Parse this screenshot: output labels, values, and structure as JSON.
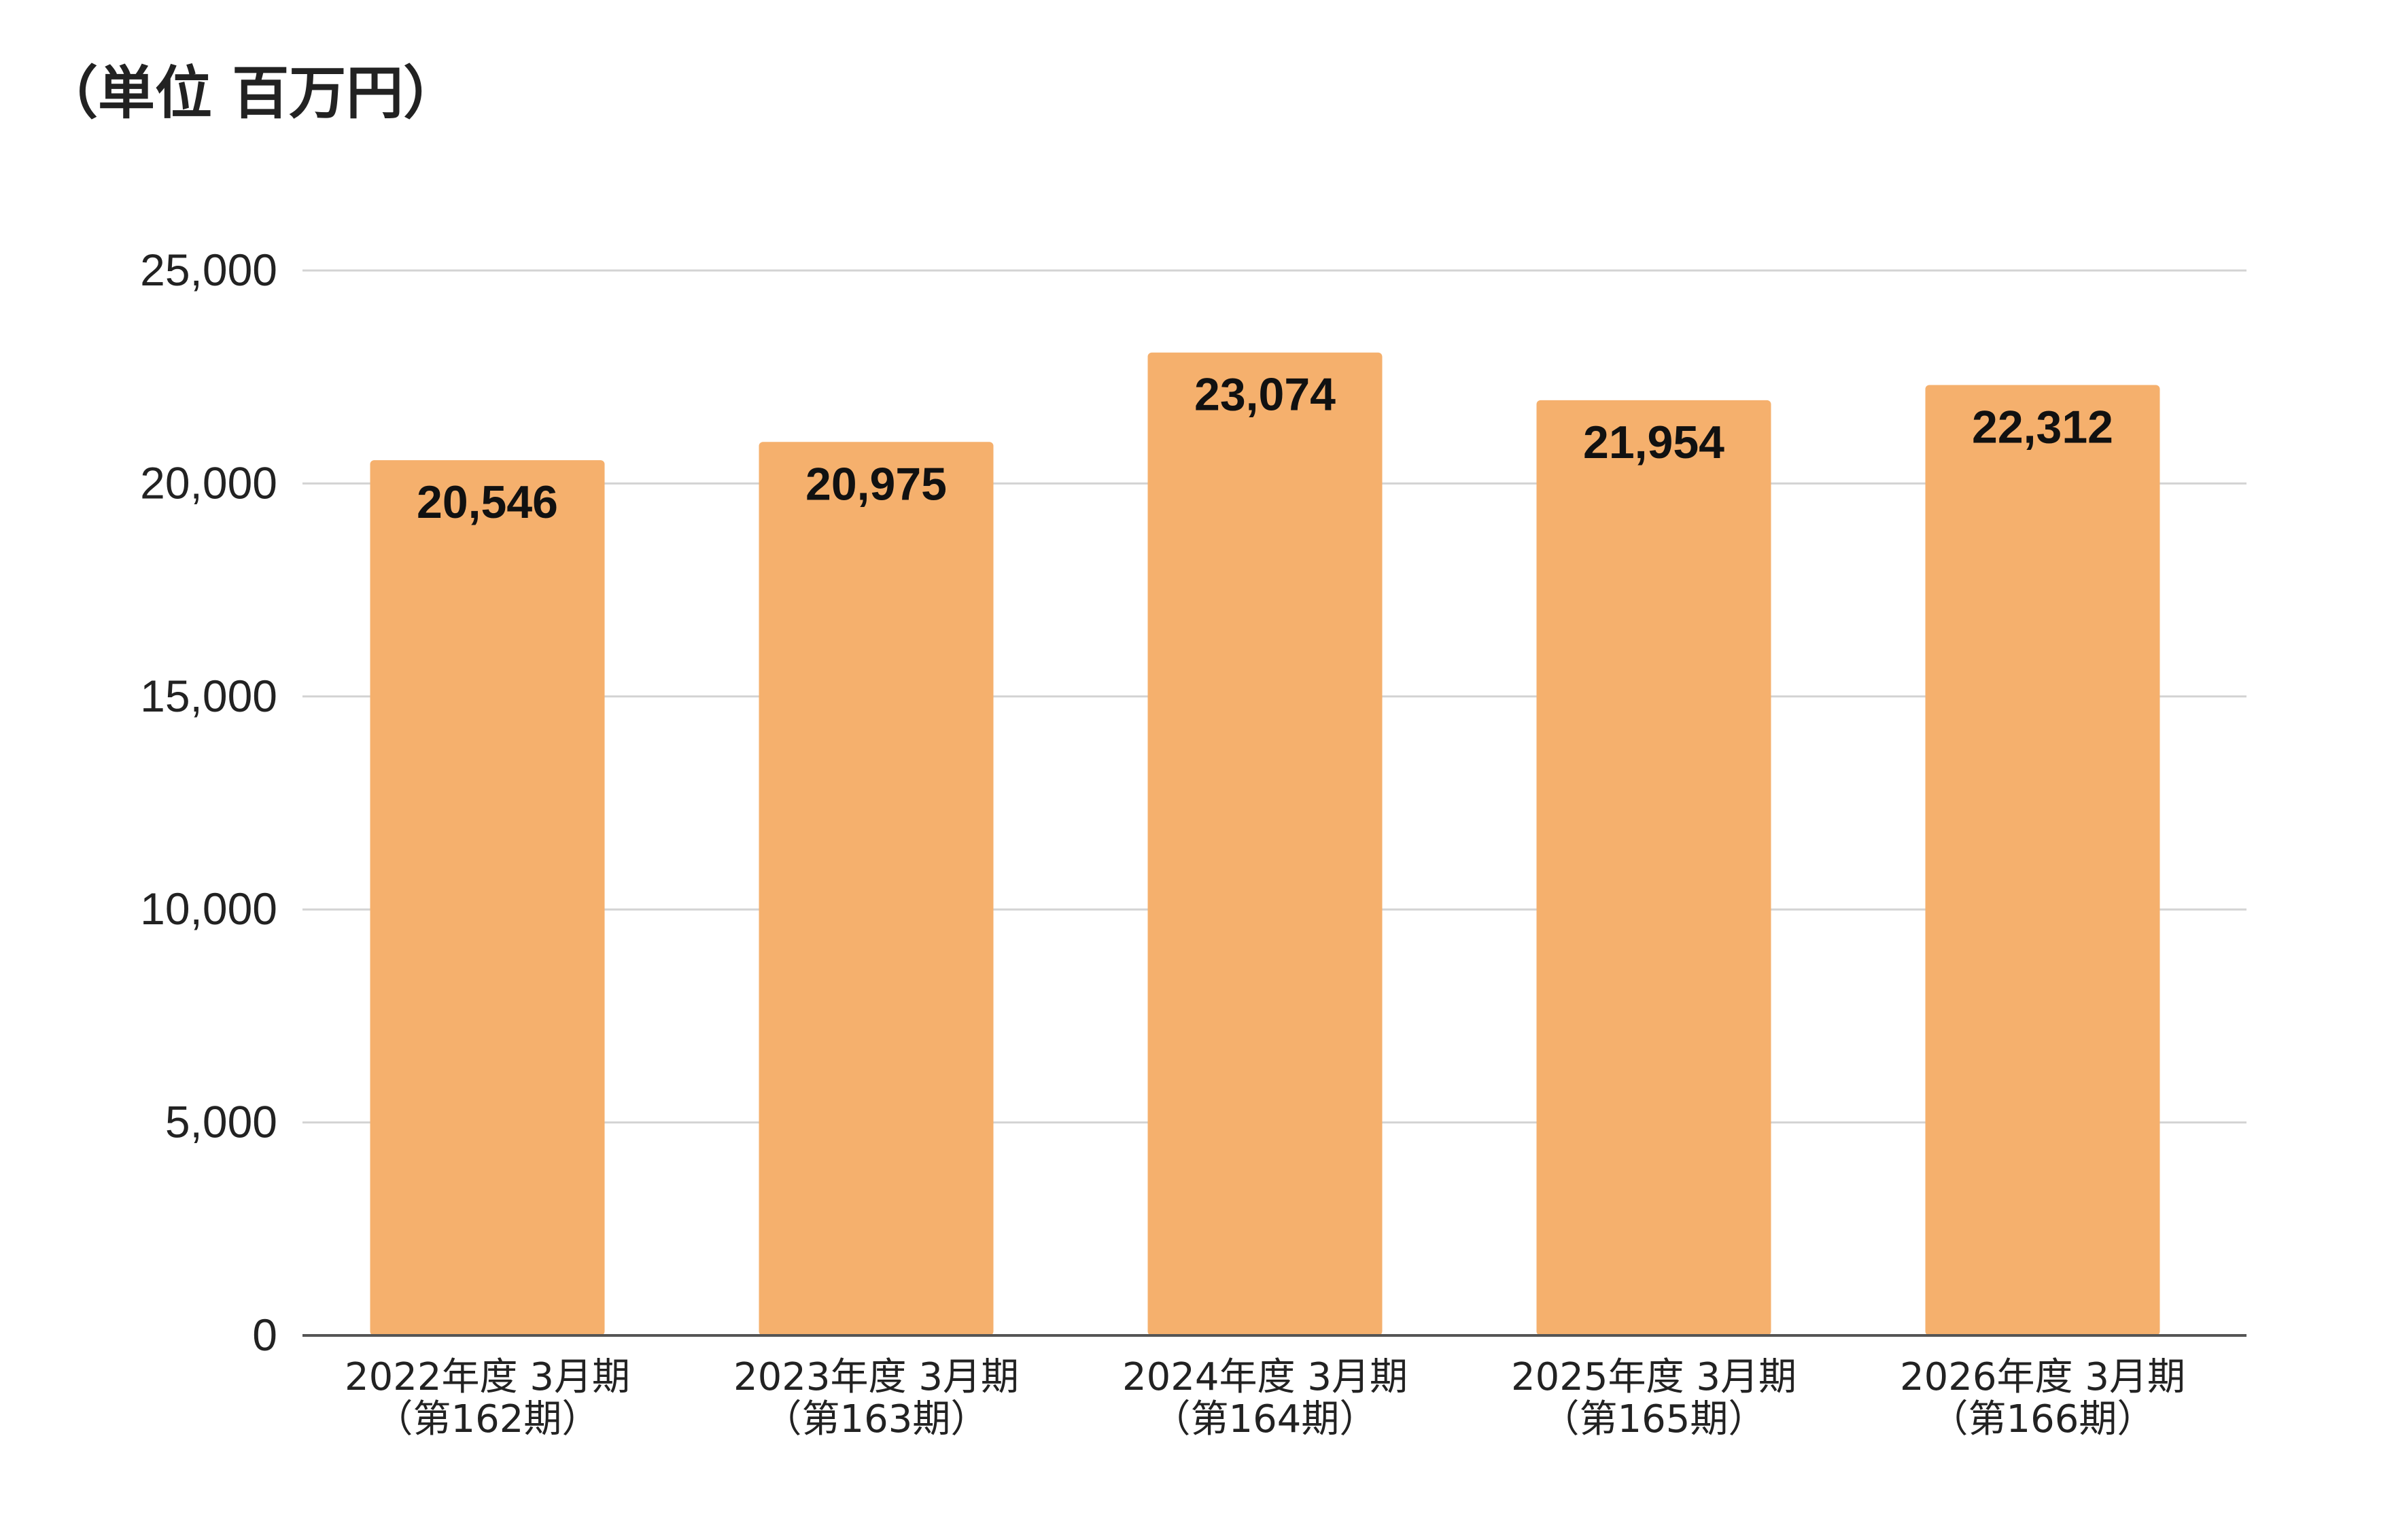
{
  "unit_label": "（単位 百万円）",
  "chart_data": {
    "type": "bar",
    "categories": [
      [
        "2022年度 3月期",
        "（第162期）"
      ],
      [
        "2023年度 3月期",
        "（第163期）"
      ],
      [
        "2024年度 3月期",
        "（第164期）"
      ],
      [
        "2025年度 3月期",
        "（第165期）"
      ],
      [
        "2026年度 3月期",
        "（第166期）"
      ]
    ],
    "values": [
      20546,
      20975,
      23074,
      21954,
      22312
    ],
    "data_labels": [
      "20,546",
      "20,975",
      "23,074",
      "21,954",
      "22,312"
    ],
    "ylim": [
      0,
      25000
    ],
    "y_ticks": [
      0,
      5000,
      10000,
      15000,
      20000,
      25000
    ],
    "y_tick_labels": [
      "0",
      "5,000",
      "10,000",
      "15,000",
      "20,000",
      "25,000"
    ],
    "grid": true,
    "legend": "none",
    "bar_color": "#F5B06D",
    "gridline_color": "#D3D3D3",
    "axis_color": "#555555"
  }
}
